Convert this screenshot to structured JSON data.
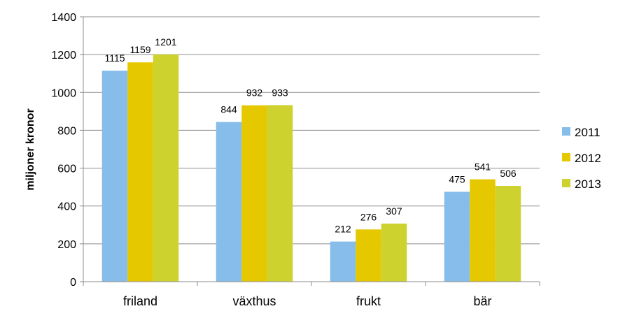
{
  "chart_data": {
    "type": "bar",
    "title": "",
    "xlabel": "",
    "ylabel": "miljoner kronor",
    "ylim": [
      0,
      1400
    ],
    "yticks": [
      0,
      200,
      400,
      600,
      800,
      1000,
      1200,
      1400
    ],
    "grid": true,
    "legend_position": "right",
    "categories": [
      "friland",
      "växthus",
      "frukt",
      "bär"
    ],
    "series": [
      {
        "name": "2011",
        "color": "#86BDEA",
        "values": [
          1115,
          844,
          212,
          475
        ]
      },
      {
        "name": "2012",
        "color": "#E6C800",
        "values": [
          1159,
          932,
          276,
          541
        ]
      },
      {
        "name": "2013",
        "color": "#CDD22E",
        "values": [
          1201,
          933,
          307,
          506
        ]
      }
    ]
  }
}
